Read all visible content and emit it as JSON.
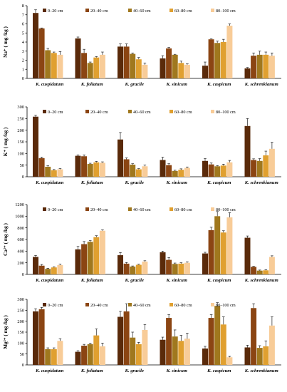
{
  "figure": {
    "legend_labels": [
      "0–20 cm",
      "20–40 cm",
      "40–60 cm",
      "60–80 cm",
      "80–100 cm"
    ],
    "series_colors": [
      "#5a2a0a",
      "#8b4513",
      "#a0781e",
      "#e0a030",
      "#f8cc98"
    ]
  },
  "chart_data": [
    {
      "type": "bar",
      "ylabel": "Na⁺ ( mg /kg )",
      "ylim": [
        0,
        8
      ],
      "yticks": [
        0,
        1,
        2,
        3,
        4,
        5,
        6,
        7,
        8
      ],
      "categories": [
        "K. cuspidatum",
        "K. foliatum",
        "K. gracile",
        "K. sinicum",
        "K. caspicum",
        "K. schrenkianum"
      ],
      "series": [
        {
          "name": "0–20 cm",
          "values": [
            7.2,
            4.4,
            3.5,
            2.2,
            1.4,
            1.1
          ],
          "errors": [
            0.35,
            0.15,
            0.3,
            0.3,
            0.4,
            0.1
          ]
        },
        {
          "name": "20–40 cm",
          "values": [
            5.5,
            2.8,
            3.5,
            3.3,
            4.3,
            2.5
          ],
          "errors": [
            0.05,
            0.4,
            0.3,
            0.1,
            0.05,
            0.3
          ]
        },
        {
          "name": "40–60 cm",
          "values": [
            3.1,
            1.7,
            2.7,
            2.6,
            3.9,
            2.6
          ],
          "errors": [
            0.2,
            0.1,
            0.1,
            0.05,
            0.2,
            0.4
          ]
        },
        {
          "name": "60–80 cm",
          "values": [
            2.8,
            2.3,
            2.1,
            1.7,
            4.0,
            2.6
          ],
          "errors": [
            0.1,
            0.1,
            0.2,
            0.2,
            0.3,
            0.3
          ]
        },
        {
          "name": "80–100 cm",
          "values": [
            2.6,
            2.6,
            1.5,
            1.5,
            5.8,
            2.5
          ],
          "errors": [
            0.35,
            0.3,
            0.2,
            0.1,
            0.2,
            0.3
          ]
        }
      ]
    },
    {
      "type": "bar",
      "ylabel": "K⁺ ( mg /kg )",
      "ylim": [
        0,
        300
      ],
      "yticks": [
        0,
        50,
        100,
        150,
        200,
        250,
        300
      ],
      "categories": [
        "K. cuspidatum",
        "K. foliatum",
        "K. gracile",
        "K. sinicum",
        "K. caspicum",
        "K. schrenkianum"
      ],
      "series": [
        {
          "name": "0–20 cm",
          "values": [
            258,
            90,
            160,
            72,
            68,
            218
          ],
          "errors": [
            6,
            4,
            30,
            12,
            10,
            32
          ]
        },
        {
          "name": "20–40 cm",
          "values": [
            80,
            88,
            75,
            50,
            53,
            72
          ],
          "errors": [
            4,
            6,
            6,
            6,
            6,
            5
          ]
        },
        {
          "name": "40–60 cm",
          "values": [
            43,
            55,
            52,
            25,
            45,
            68
          ],
          "errors": [
            4,
            3,
            4,
            3,
            3,
            10
          ]
        },
        {
          "name": "60–80 cm",
          "values": [
            28,
            62,
            32,
            30,
            48,
            92
          ],
          "errors": [
            3,
            4,
            3,
            4,
            6,
            18
          ]
        },
        {
          "name": "80–100 cm",
          "values": [
            32,
            60,
            45,
            38,
            62,
            120
          ],
          "errors": [
            3,
            4,
            5,
            4,
            8,
            28
          ]
        }
      ]
    },
    {
      "type": "bar",
      "ylabel": "Ca²⁺ ( mg /kg )",
      "ylim": [
        0,
        1200
      ],
      "yticks": [
        0,
        200,
        400,
        600,
        800,
        1000,
        1200
      ],
      "categories": [
        "K. cuspidatum",
        "K. foliatum",
        "K. gracile",
        "K. sinicum",
        "K. caspicum",
        "K. schrenkianum"
      ],
      "series": [
        {
          "name": "0–20 cm",
          "values": [
            300,
            430,
            330,
            380,
            360,
            630
          ],
          "errors": [
            25,
            50,
            45,
            20,
            20,
            30
          ]
        },
        {
          "name": "20–40 cm",
          "values": [
            150,
            520,
            185,
            250,
            760,
            130
          ],
          "errors": [
            20,
            45,
            20,
            40,
            50,
            10
          ]
        },
        {
          "name": "40–60 cm",
          "values": [
            95,
            560,
            135,
            180,
            1000,
            65
          ],
          "errors": [
            10,
            20,
            10,
            15,
            80,
            10
          ]
        },
        {
          "name": "60–80 cm",
          "values": [
            120,
            640,
            165,
            185,
            720,
            70
          ],
          "errors": [
            10,
            25,
            10,
            15,
            30,
            10
          ]
        },
        {
          "name": "80–100 cm",
          "values": [
            160,
            750,
            220,
            200,
            980,
            300
          ],
          "errors": [
            15,
            15,
            15,
            15,
            80,
            20
          ]
        }
      ]
    },
    {
      "type": "bar",
      "ylabel": "Mg²⁺ ( mg /kg )",
      "ylim": [
        0,
        300
      ],
      "yticks": [
        0,
        50,
        100,
        150,
        200,
        250,
        300
      ],
      "categories": [
        "K. cuspidatum",
        "K. foliatum",
        "K. gracile",
        "K. sinicum",
        "K. caspicum",
        "K. schrenkianum"
      ],
      "series": [
        {
          "name": "0–20 cm",
          "values": [
            245,
            60,
            220,
            115,
            75,
            80
          ],
          "errors": [
            12,
            5,
            25,
            12,
            10,
            10
          ]
        },
        {
          "name": "20–40 cm",
          "values": [
            255,
            88,
            245,
            215,
            215,
            260
          ],
          "errors": [
            8,
            6,
            35,
            15,
            15,
            20
          ]
        },
        {
          "name": "40–60 cm",
          "values": [
            72,
            95,
            125,
            130,
            270,
            78
          ],
          "errors": [
            6,
            4,
            25,
            30,
            15,
            10
          ]
        },
        {
          "name": "60–80 cm",
          "values": [
            72,
            135,
            95,
            110,
            185,
            85
          ],
          "errors": [
            6,
            30,
            8,
            25,
            35,
            25
          ]
        },
        {
          "name": "80–100 cm",
          "values": [
            110,
            85,
            160,
            120,
            35,
            180
          ],
          "errors": [
            10,
            15,
            25,
            25,
            4,
            40
          ]
        }
      ]
    }
  ]
}
